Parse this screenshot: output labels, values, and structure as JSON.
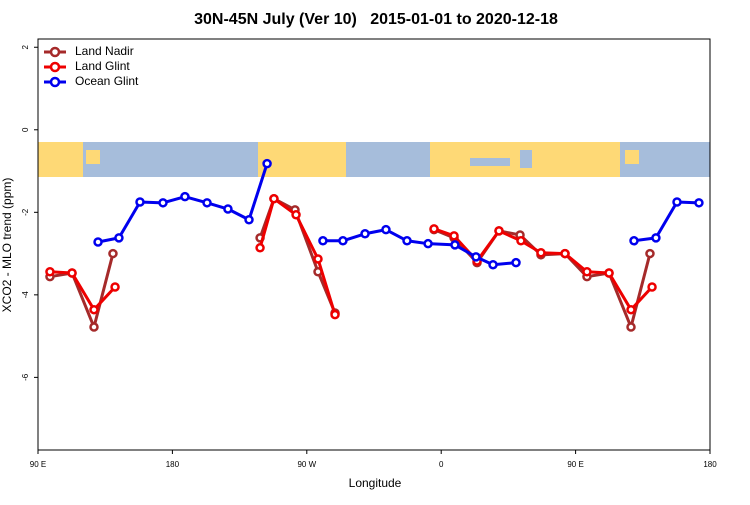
{
  "chart_data": {
    "type": "line",
    "title": "30N-45N July (Ver 10)   2015-01-01 to 2020-12-18",
    "xlabel": "Longitude",
    "ylabel": "XCO2 - MLO trend (ppm)",
    "xlim": [
      90,
      540
    ],
    "ylim": [
      -7.76,
      2.2
    ],
    "xticks": [
      {
        "value": 90,
        "label": "90 E"
      },
      {
        "value": 180,
        "label": "180"
      },
      {
        "value": 270,
        "label": "90 W"
      },
      {
        "value": 360,
        "label": "0"
      },
      {
        "value": 450,
        "label": "90 E"
      },
      {
        "value": 540,
        "label": "180"
      }
    ],
    "yticks": [
      -6,
      -4,
      -2,
      0,
      2
    ],
    "legend": "top-left",
    "series": [
      {
        "name": "Land Nadir",
        "color": "#a52a2a",
        "x": [
          98,
          112.8,
          127.5,
          140.2,
          null,
          238.7,
          248,
          262.1,
          277.5,
          288.9,
          null,
          355.2,
          368.6,
          384,
          398.7,
          412.8,
          426.8,
          442.9,
          457.6,
          472.4,
          487.1,
          499.8
        ],
        "values": [
          -3.56,
          -3.47,
          -4.78,
          -3.0,
          null,
          -2.62,
          -1.67,
          -1.94,
          -3.44,
          -4.44,
          null,
          -2.42,
          -2.62,
          -3.22,
          -2.45,
          -2.55,
          -3.03,
          -3.0,
          -3.56,
          -3.47,
          -4.78,
          -3.0
        ]
      },
      {
        "name": "Land Glint",
        "color": "#ee0000",
        "x": [
          98,
          112.8,
          127.5,
          141.6,
          null,
          238.7,
          248,
          262.8,
          277.5,
          288.9,
          null,
          355.2,
          368.6,
          384,
          398.7,
          413.4,
          426.8,
          442.9,
          457.6,
          472.4,
          487.1,
          501.2
        ],
        "values": [
          -3.44,
          -3.47,
          -4.36,
          -3.81,
          null,
          -2.86,
          -1.67,
          -2.06,
          -3.13,
          -4.48,
          null,
          -2.4,
          -2.57,
          -3.18,
          -2.45,
          -2.69,
          -2.98,
          -3.0,
          -3.44,
          -3.47,
          -4.36,
          -3.81
        ]
      },
      {
        "name": "Ocean Glint",
        "color": "#0000ee",
        "x": [
          130.2,
          144.2,
          158.3,
          173.7,
          188.4,
          203.2,
          217.2,
          231.3,
          243.4,
          null,
          280.8,
          294.2,
          309,
          323,
          337.1,
          351.2,
          369.2,
          383.3,
          394.7,
          410.1,
          null,
          489.1,
          503.8,
          517.9,
          532.6
        ],
        "values": [
          -2.72,
          -2.62,
          -1.75,
          -1.77,
          -1.62,
          -1.77,
          -1.92,
          -2.18,
          -0.82,
          null,
          -2.69,
          -2.69,
          -2.52,
          -2.42,
          -2.69,
          -2.76,
          -2.79,
          -3.08,
          -3.27,
          -3.22,
          null,
          -2.69,
          -2.62,
          -1.75,
          -1.77
        ]
      }
    ]
  }
}
